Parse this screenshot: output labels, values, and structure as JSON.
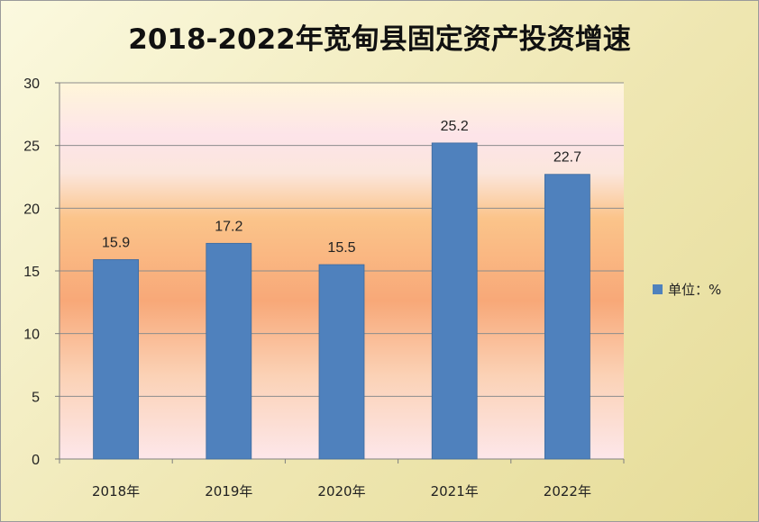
{
  "chart_data": {
    "type": "bar",
    "title": "2018-2022年宽甸县固定资产投资增速",
    "categories": [
      "2018年",
      "2019年",
      "2020年",
      "2021年",
      "2022年"
    ],
    "series": [
      {
        "name": "单位：%",
        "values": [
          15.9,
          17.2,
          15.5,
          25.2,
          22.7
        ]
      }
    ],
    "data_labels": [
      "15.9",
      "17.2",
      "15.5",
      "25.2",
      "22.7"
    ],
    "ylim": [
      0,
      30
    ],
    "yticks": [
      0,
      5,
      10,
      15,
      20,
      25,
      30
    ],
    "grid": true,
    "legend_position": "right",
    "colors": {
      "bar": "#4f81bd",
      "bar_edge": "#3d6a9e",
      "grid": "#8c8c8c",
      "plot_top": "#fff6d9",
      "plot_band_pink": "#fde4e9",
      "plot_orange": "#fbc48a",
      "plot_mid_orange": "#f8a878"
    }
  }
}
